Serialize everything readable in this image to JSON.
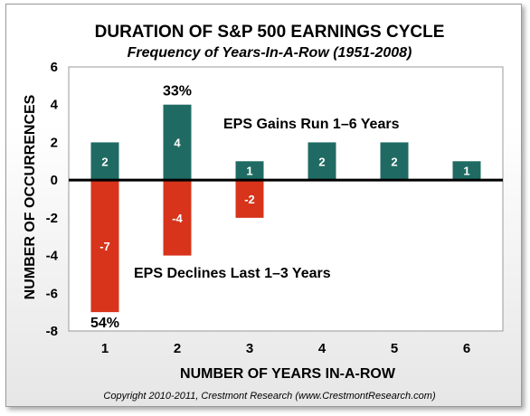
{
  "chart_data": {
    "type": "bar",
    "title": "DURATION OF S&P 500 EARNINGS CYCLE",
    "subtitle": "Frequency of Years-In-A-Row (1951-2008)",
    "xlabel": "NUMBER OF YEARS IN-A-ROW",
    "ylabel": "NUMBER OF OCCURRENCES",
    "categories": [
      "1",
      "2",
      "3",
      "4",
      "5",
      "6"
    ],
    "ylim": [
      -8,
      6
    ],
    "yticks": [
      "6",
      "4",
      "2",
      "0",
      "-2",
      "-4",
      "-6",
      "-8"
    ],
    "grid": false,
    "series": [
      {
        "values": [
          2,
          4,
          1,
          2,
          2,
          1
        ],
        "labels": [
          "2",
          "4",
          "1",
          "2",
          "2",
          "1"
        ],
        "color": "#1f6b63"
      },
      {
        "values": [
          -7,
          -4,
          -2,
          null,
          null,
          null
        ],
        "labels": [
          "-7",
          "-4",
          "-2",
          "",
          "",
          ""
        ],
        "color": "#d7341b"
      }
    ],
    "annotations": {
      "pct_top": "33%",
      "pct_bottom": "54%",
      "gains": "EPS Gains Run 1–6 Years",
      "declines": "EPS Declines Last 1–3 Years"
    },
    "copyright": "Copyright 2010-2011, Crestmont Research (www.CrestmontResearch.com)"
  }
}
